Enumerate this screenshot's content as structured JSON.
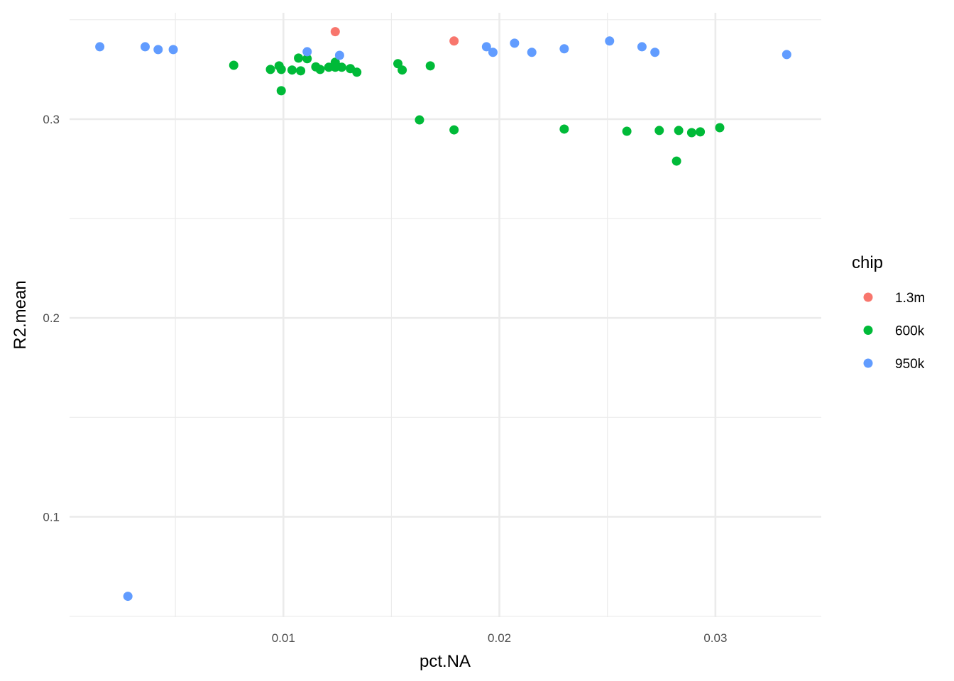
{
  "chart_data": {
    "type": "scatter",
    "xlabel": "pct.NA",
    "ylabel": "R2.mean",
    "xlim": [
      0.0001,
      0.0349
    ],
    "ylim": [
      0.0495,
      0.3535
    ],
    "x_ticks": [
      0.01,
      0.02,
      0.03
    ],
    "x_tick_labels": [
      "0.01",
      "0.02",
      "0.03"
    ],
    "x_minor_ticks": [
      0.005,
      0.015,
      0.025
    ],
    "y_ticks": [
      0.1,
      0.2,
      0.3
    ],
    "y_tick_labels": [
      "0.1",
      "0.2",
      "0.3"
    ],
    "y_minor_ticks": [
      0.05,
      0.15,
      0.25,
      0.35
    ],
    "grid": true,
    "legend": {
      "title": "chip",
      "position": "right"
    },
    "series": [
      {
        "name": "1.3m",
        "color": "#F8766D",
        "points": [
          [
            0.0124,
            0.344
          ],
          [
            0.0179,
            0.3393
          ]
        ]
      },
      {
        "name": "600k",
        "color": "#00BA38",
        "points": [
          [
            0.0077,
            0.3271
          ],
          [
            0.0094,
            0.325
          ],
          [
            0.0098,
            0.3268
          ],
          [
            0.0099,
            0.325
          ],
          [
            0.0099,
            0.3143
          ],
          [
            0.0104,
            0.3247
          ],
          [
            0.0107,
            0.3307
          ],
          [
            0.0108,
            0.3243
          ],
          [
            0.0111,
            0.3304
          ],
          [
            0.0115,
            0.3263
          ],
          [
            0.0117,
            0.325
          ],
          [
            0.0121,
            0.3261
          ],
          [
            0.0124,
            0.3261
          ],
          [
            0.0124,
            0.3286
          ],
          [
            0.0127,
            0.3261
          ],
          [
            0.0131,
            0.3254
          ],
          [
            0.0134,
            0.3236
          ],
          [
            0.0153,
            0.3279
          ],
          [
            0.0155,
            0.3247
          ],
          [
            0.0163,
            0.2996
          ],
          [
            0.0168,
            0.3268
          ],
          [
            0.0179,
            0.2946
          ],
          [
            0.023,
            0.295
          ],
          [
            0.0259,
            0.2939
          ],
          [
            0.0274,
            0.2943
          ],
          [
            0.0282,
            0.2789
          ],
          [
            0.0283,
            0.2943
          ],
          [
            0.0289,
            0.2932
          ],
          [
            0.0293,
            0.2936
          ],
          [
            0.0302,
            0.2957
          ]
        ]
      },
      {
        "name": "950k",
        "color": "#619CFF",
        "points": [
          [
            0.0015,
            0.3364
          ],
          [
            0.0028,
            0.06
          ],
          [
            0.0036,
            0.3364
          ],
          [
            0.0042,
            0.335
          ],
          [
            0.0049,
            0.335
          ],
          [
            0.0111,
            0.3339
          ],
          [
            0.0126,
            0.3321
          ],
          [
            0.0194,
            0.3364
          ],
          [
            0.0197,
            0.3336
          ],
          [
            0.0207,
            0.3382
          ],
          [
            0.0215,
            0.3336
          ],
          [
            0.023,
            0.3354
          ],
          [
            0.0251,
            0.3393
          ],
          [
            0.0266,
            0.3364
          ],
          [
            0.0272,
            0.3336
          ],
          [
            0.0333,
            0.3325
          ]
        ]
      }
    ]
  }
}
